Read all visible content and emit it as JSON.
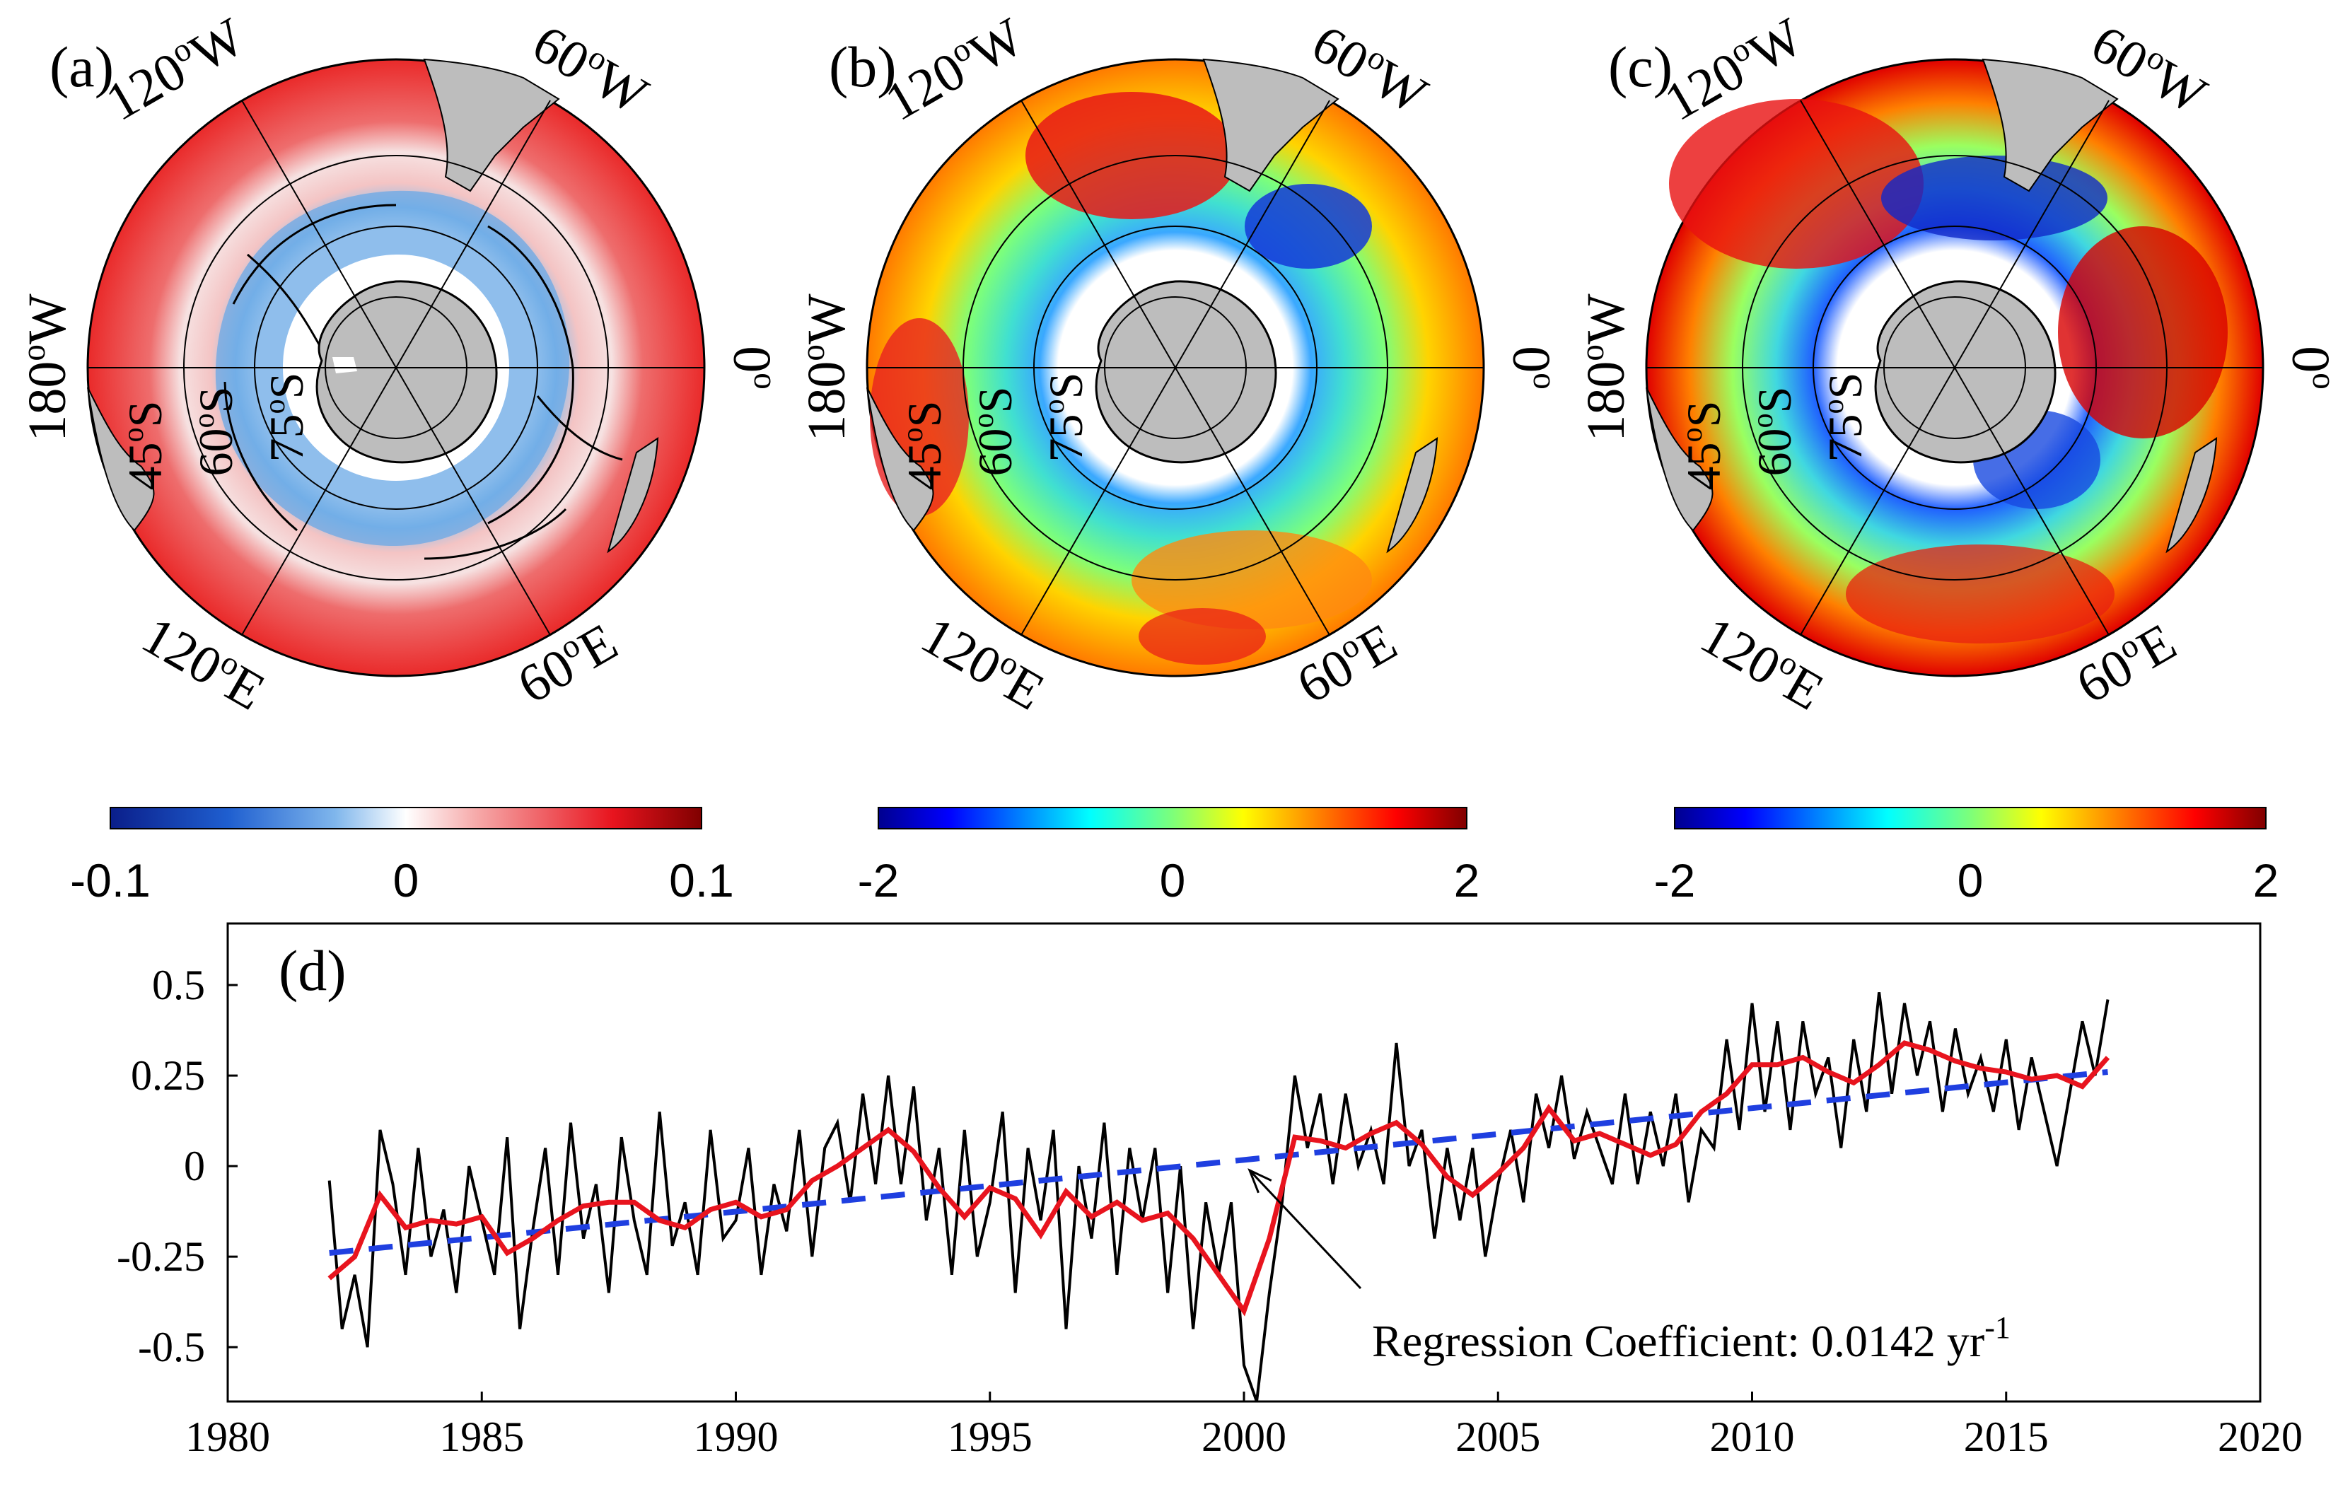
{
  "panels": {
    "a": {
      "label": "(a)"
    },
    "b": {
      "label": "(b)"
    },
    "c": {
      "label": "(c)"
    }
  },
  "map_labels": {
    "lon_120W": "120",
    "lon_60W": "60",
    "lon_180W": "180",
    "lon_0": "0",
    "lon_120E": "120",
    "lon_60E": "60",
    "deg": "o",
    "W": "W",
    "E": "E",
    "lat_45S": "45",
    "lat_60S": "60",
    "lat_75S": "75",
    "S": "S"
  },
  "colorbars": [
    {
      "id": "a",
      "ticks": [
        "-0.1",
        "0",
        "0.1"
      ],
      "colormap": "blue-white-red"
    },
    {
      "id": "b",
      "ticks": [
        "-2",
        "0",
        "2"
      ],
      "colormap": "jet"
    },
    {
      "id": "c",
      "ticks": [
        "-2",
        "0",
        "2"
      ],
      "colormap": "jet"
    }
  ],
  "colors": {
    "land": "#b9b9b9",
    "series_raw": "#000000",
    "series_smooth": "#e8141e",
    "trend": "#1f3fe0"
  },
  "chart_data": {
    "type": "line",
    "title": "(d)",
    "xlabel": "",
    "ylabel": "",
    "xlim": [
      1980,
      2020
    ],
    "ylim": [
      -0.65,
      0.67
    ],
    "x_ticks": [
      1980,
      1985,
      1990,
      1995,
      2000,
      2005,
      2010,
      2015,
      2020
    ],
    "y_ticks": [
      0.5,
      0.25,
      0,
      -0.25,
      -0.5
    ],
    "y_tick_labels": [
      "0.5",
      "0.25",
      "0",
      "-0.25",
      "-0.5"
    ],
    "annotation": {
      "text": "Regression Coefficient: 0.0142 yr",
      "superscript": "-1",
      "arrow_to": [
        2000.0,
        0.0
      ]
    },
    "series": [
      {
        "name": "smoothed",
        "style": "red solid",
        "x": [
          1982.0,
          1982.5,
          1983.0,
          1983.5,
          1984.0,
          1984.5,
          1985.0,
          1985.5,
          1986.0,
          1986.5,
          1987.0,
          1987.5,
          1988.0,
          1988.5,
          1989.0,
          1989.5,
          1990.0,
          1990.5,
          1991.0,
          1991.5,
          1992.0,
          1992.5,
          1993.0,
          1993.5,
          1994.0,
          1994.5,
          1995.0,
          1995.5,
          1996.0,
          1996.5,
          1997.0,
          1997.5,
          1998.0,
          1998.5,
          1999.0,
          1999.5,
          2000.0,
          2000.5,
          2001.0,
          2001.5,
          2002.0,
          2002.5,
          2003.0,
          2003.5,
          2004.0,
          2004.5,
          2005.0,
          2005.5,
          2006.0,
          2006.5,
          2007.0,
          2007.5,
          2008.0,
          2008.5,
          2009.0,
          2009.5,
          2010.0,
          2010.5,
          2011.0,
          2011.5,
          2012.0,
          2012.5,
          2013.0,
          2013.5,
          2014.0,
          2014.5,
          2015.0,
          2015.5,
          2016.0,
          2016.5,
          2017.0
        ],
        "y": [
          -0.31,
          -0.25,
          -0.08,
          -0.17,
          -0.15,
          -0.16,
          -0.14,
          -0.24,
          -0.2,
          -0.15,
          -0.11,
          -0.1,
          -0.1,
          -0.15,
          -0.17,
          -0.12,
          -0.1,
          -0.14,
          -0.12,
          -0.04,
          0.0,
          0.05,
          0.1,
          0.04,
          -0.06,
          -0.14,
          -0.06,
          -0.09,
          -0.19,
          -0.07,
          -0.14,
          -0.1,
          -0.15,
          -0.13,
          -0.2,
          -0.3,
          -0.4,
          -0.2,
          0.08,
          0.07,
          0.05,
          0.09,
          0.12,
          0.06,
          -0.03,
          -0.08,
          -0.02,
          0.05,
          0.16,
          0.07,
          0.09,
          0.06,
          0.03,
          0.06,
          0.15,
          0.2,
          0.28,
          0.28,
          0.3,
          0.26,
          0.23,
          0.28,
          0.34,
          0.32,
          0.29,
          0.27,
          0.26,
          0.24,
          0.25,
          0.22,
          0.3
        ]
      },
      {
        "name": "trend",
        "style": "blue dashed",
        "x": [
          1982.0,
          2017.0
        ],
        "y": [
          -0.24,
          0.26
        ]
      },
      {
        "name": "monthly",
        "style": "black solid",
        "x": [
          1982.0,
          1982.25,
          1982.5,
          1982.75,
          1983.0,
          1983.25,
          1983.5,
          1983.75,
          1984.0,
          1984.25,
          1984.5,
          1984.75,
          1985.0,
          1985.25,
          1985.5,
          1985.75,
          1986.0,
          1986.25,
          1986.5,
          1986.75,
          1987.0,
          1987.25,
          1987.5,
          1987.75,
          1988.0,
          1988.25,
          1988.5,
          1988.75,
          1989.0,
          1989.25,
          1989.5,
          1989.75,
          1990.0,
          1990.25,
          1990.5,
          1990.75,
          1991.0,
          1991.25,
          1991.5,
          1991.75,
          1992.0,
          1992.25,
          1992.5,
          1992.75,
          1993.0,
          1993.25,
          1993.5,
          1993.75,
          1994.0,
          1994.25,
          1994.5,
          1994.75,
          1995.0,
          1995.25,
          1995.5,
          1995.75,
          1996.0,
          1996.25,
          1996.5,
          1996.75,
          1997.0,
          1997.25,
          1997.5,
          1997.75,
          1998.0,
          1998.25,
          1998.5,
          1998.75,
          1999.0,
          1999.25,
          1999.5,
          1999.75,
          2000.0,
          2000.25,
          2000.5,
          2000.75,
          2001.0,
          2001.25,
          2001.5,
          2001.75,
          2002.0,
          2002.25,
          2002.5,
          2002.75,
          2003.0,
          2003.25,
          2003.5,
          2003.75,
          2004.0,
          2004.25,
          2004.5,
          2004.75,
          2005.0,
          2005.25,
          2005.5,
          2005.75,
          2006.0,
          2006.25,
          2006.5,
          2006.75,
          2007.0,
          2007.25,
          2007.5,
          2007.75,
          2008.0,
          2008.25,
          2008.5,
          2008.75,
          2009.0,
          2009.25,
          2009.5,
          2009.75,
          2010.0,
          2010.25,
          2010.5,
          2010.75,
          2011.0,
          2011.25,
          2011.5,
          2011.75,
          2012.0,
          2012.25,
          2012.5,
          2012.75,
          2013.0,
          2013.25,
          2013.5,
          2013.75,
          2014.0,
          2014.25,
          2014.5,
          2014.75,
          2015.0,
          2015.25,
          2015.5,
          2015.75,
          2016.0,
          2016.25,
          2016.5,
          2016.75,
          2017.0
        ],
        "y": [
          -0.04,
          -0.45,
          -0.3,
          -0.5,
          0.1,
          -0.05,
          -0.3,
          0.05,
          -0.25,
          -0.12,
          -0.35,
          0.0,
          -0.15,
          -0.3,
          0.08,
          -0.45,
          -0.18,
          0.05,
          -0.3,
          0.12,
          -0.2,
          -0.05,
          -0.35,
          0.08,
          -0.15,
          -0.3,
          0.15,
          -0.22,
          -0.1,
          -0.3,
          0.1,
          -0.2,
          -0.15,
          0.05,
          -0.3,
          -0.05,
          -0.18,
          0.1,
          -0.25,
          0.05,
          0.12,
          -0.1,
          0.2,
          -0.05,
          0.25,
          -0.05,
          0.22,
          -0.15,
          0.05,
          -0.3,
          0.1,
          -0.25,
          -0.1,
          0.15,
          -0.35,
          0.05,
          -0.15,
          0.1,
          -0.45,
          0.0,
          -0.2,
          0.12,
          -0.3,
          0.05,
          -0.15,
          0.05,
          -0.35,
          0.0,
          -0.45,
          -0.1,
          -0.3,
          -0.1,
          -0.55,
          -0.65,
          -0.35,
          -0.1,
          0.25,
          0.05,
          0.2,
          -0.05,
          0.2,
          0.0,
          0.1,
          -0.05,
          0.34,
          0.0,
          0.1,
          -0.2,
          0.05,
          -0.15,
          0.05,
          -0.25,
          -0.05,
          0.1,
          -0.1,
          0.2,
          0.05,
          0.25,
          0.02,
          0.15,
          0.05,
          -0.05,
          0.2,
          -0.05,
          0.15,
          0.0,
          0.2,
          -0.1,
          0.1,
          0.05,
          0.35,
          0.1,
          0.45,
          0.15,
          0.4,
          0.1,
          0.4,
          0.2,
          0.3,
          0.05,
          0.35,
          0.15,
          0.48,
          0.2,
          0.45,
          0.25,
          0.4,
          0.15,
          0.38,
          0.2,
          0.3,
          0.15,
          0.35,
          0.1,
          0.3,
          0.15,
          0.0,
          0.2,
          0.4,
          0.25,
          0.46
        ]
      }
    ]
  }
}
